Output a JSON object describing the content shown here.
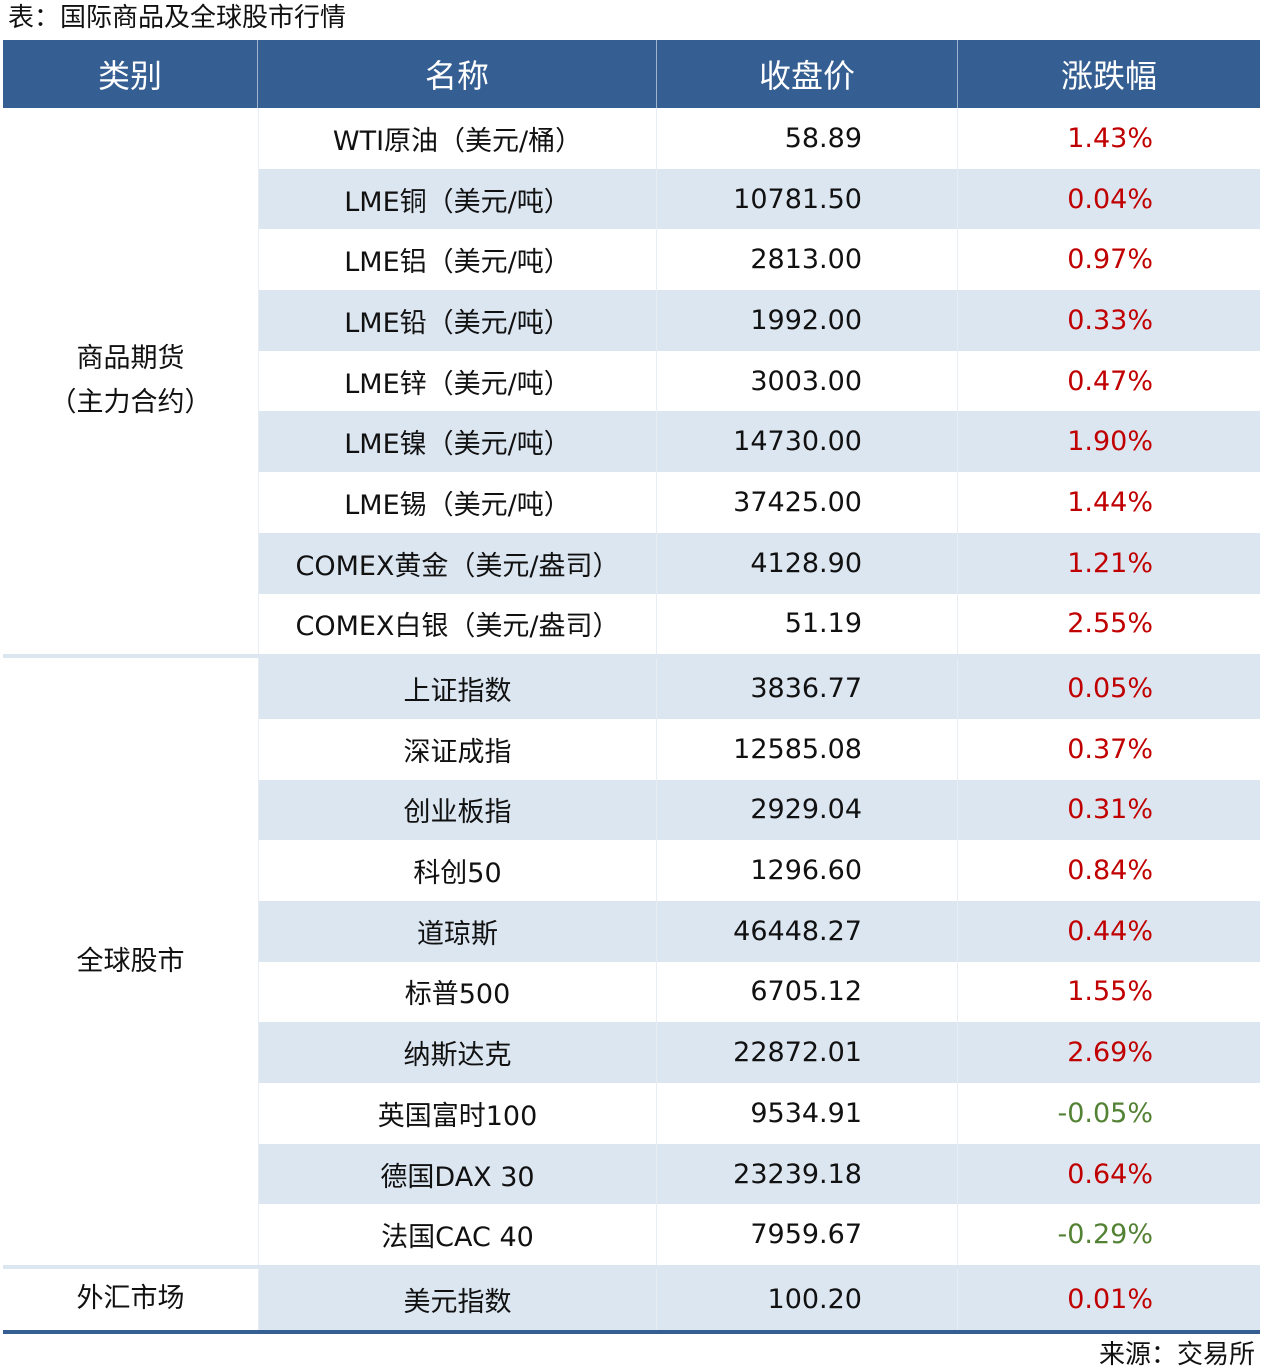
{
  "title": "表：国际商品及全球股市行情",
  "headers": [
    "类别",
    "名称",
    "收盘价",
    "涨跌幅"
  ],
  "colors": {
    "header_bg": "#355e92",
    "stripe": "#dce6f1",
    "up": "#c00000",
    "down": "#548235"
  },
  "groups": [
    {
      "category": "商品期货\n（主力合约）",
      "rows": [
        {
          "name": "WTI原油（美元/桶）",
          "close": "58.89",
          "change": "1.43%"
        },
        {
          "name": "LME铜（美元/吨）",
          "close": "10781.50",
          "change": "0.04%"
        },
        {
          "name": "LME铝（美元/吨）",
          "close": "2813.00",
          "change": "0.97%"
        },
        {
          "name": "LME铅（美元/吨）",
          "close": "1992.00",
          "change": "0.33%"
        },
        {
          "name": "LME锌（美元/吨）",
          "close": "3003.00",
          "change": "0.47%"
        },
        {
          "name": "LME镍（美元/吨）",
          "close": "14730.00",
          "change": "1.90%"
        },
        {
          "name": "LME锡（美元/吨）",
          "close": "37425.00",
          "change": "1.44%"
        },
        {
          "name": "COMEX黄金（美元/盎司）",
          "close": "4128.90",
          "change": "1.21%"
        },
        {
          "name": "COMEX白银（美元/盎司）",
          "close": "51.19",
          "change": "2.55%"
        }
      ]
    },
    {
      "category": "全球股市",
      "rows": [
        {
          "name": "上证指数",
          "close": "3836.77",
          "change": "0.05%"
        },
        {
          "name": "深证成指",
          "close": "12585.08",
          "change": "0.37%"
        },
        {
          "name": "创业板指",
          "close": "2929.04",
          "change": "0.31%"
        },
        {
          "name": "科创50",
          "close": "1296.60",
          "change": "0.84%"
        },
        {
          "name": "道琼斯",
          "close": "46448.27",
          "change": "0.44%"
        },
        {
          "name": "标普500",
          "close": "6705.12",
          "change": "1.55%"
        },
        {
          "name": "纳斯达克",
          "close": "22872.01",
          "change": "2.69%"
        },
        {
          "name": "英国富时100",
          "close": "9534.91",
          "change": "-0.05%"
        },
        {
          "name": "德国DAX 30",
          "close": "23239.18",
          "change": "0.64%"
        },
        {
          "name": "法国CAC 40",
          "close": "7959.67",
          "change": "-0.29%"
        }
      ]
    },
    {
      "category": "外汇市场",
      "rows": [
        {
          "name": "美元指数",
          "close": "100.20",
          "change": "0.01%"
        }
      ]
    }
  ],
  "source": "来源：交易所"
}
